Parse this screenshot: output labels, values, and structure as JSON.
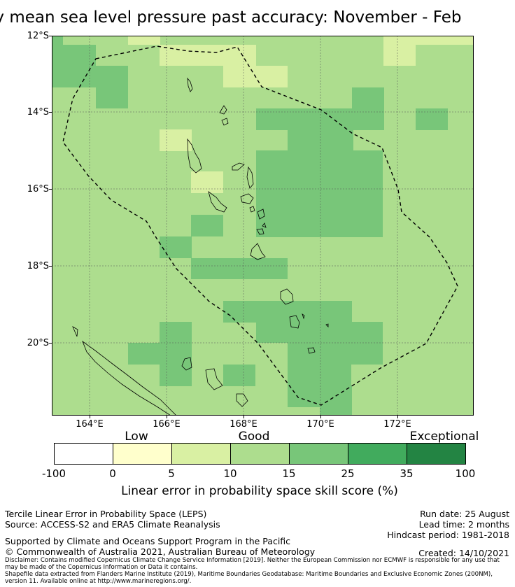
{
  "title": "ly mean sea level pressure past accuracy: November - Feb",
  "map": {
    "lat_labels": [
      "12°S",
      "14°S",
      "16°S",
      "18°S",
      "20°S"
    ],
    "lon_labels": [
      "164°E",
      "166°E",
      "168°E",
      "170°E",
      "172°E"
    ],
    "colors": {
      "c0_5": "#ffffcc",
      "c5_10": "#d9f0a3",
      "c10_15": "#addd8e",
      "c15_25": "#78c679",
      "c25_35": "#41ab5d",
      "c35_100": "#238443",
      "land_outline": "#000000",
      "eez_outline": "#000000"
    }
  },
  "colorbar": {
    "categories": [
      "Low",
      "Good",
      "Exceptional"
    ],
    "ticks": [
      "-100",
      "0",
      "5",
      "10",
      "15",
      "25",
      "35",
      "100"
    ],
    "colors": [
      "#ffffff",
      "#ffffcc",
      "#d9f0a3",
      "#addd8e",
      "#78c679",
      "#41ab5d",
      "#238443"
    ],
    "label": "Linear error in probability space skill score (%)"
  },
  "info_left": {
    "line1": "Tercile Linear Error in Probability Space (LEPS)",
    "line2": "Source: ACCESS-S2 and ERA5 Climate Reanalysis",
    "line3": "Supported by Climate and Oceans Support Program in the Pacific",
    "line4": "© Commonwealth of Australia 2021, Australian Bureau of Meteorology"
  },
  "info_right": {
    "run_date": "Run date: 25 August",
    "lead_time": "Lead time: 2 months",
    "hindcast": "Hindcast period: 1981-2018",
    "created": "Created: 14/10/2021"
  },
  "disclaimer": "Disclaimer: Contains modified Copernicus Climate Change Service Information [2019]. Neither the European Commission nor ECMWF is responsible for any use that may be made of the Copernicus Information or Data it contains.",
  "shapefile": "Shapefile data extracted from Flanders Marine Institute (2019), Maritime Boundaries Geodatabase: Maritime Boundaries and Exclusive Economic Zones (200NM), version 11. Available online at http://www.marineregions.org/."
}
